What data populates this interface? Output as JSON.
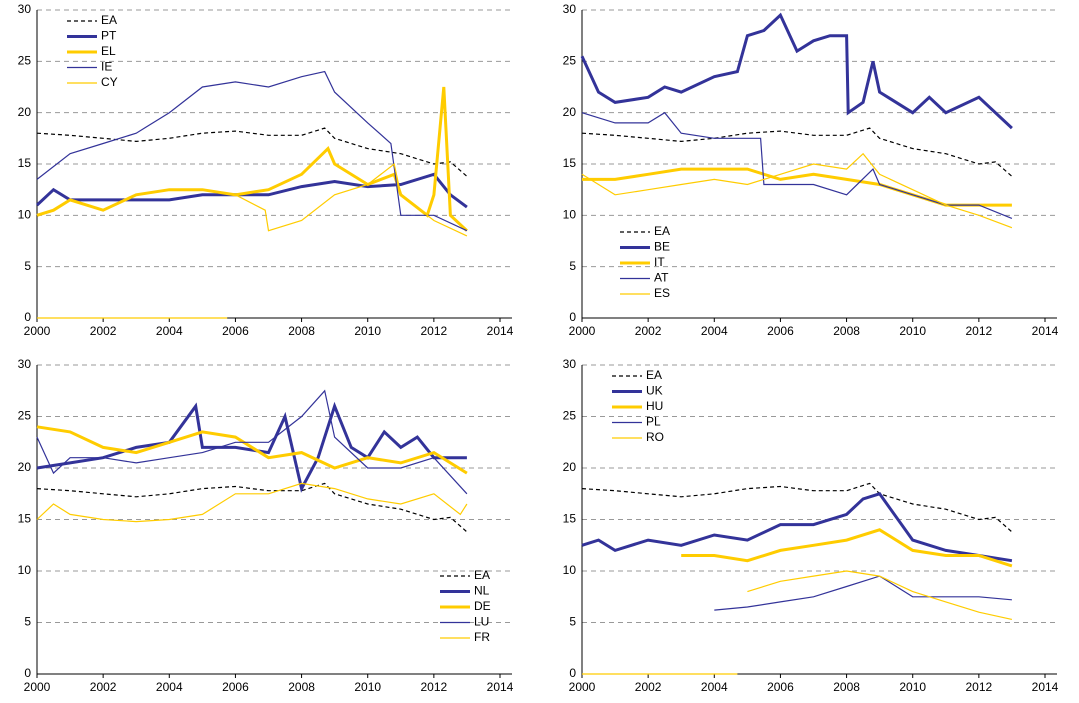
{
  "chart_data": [
    {
      "type": "line",
      "xlim": [
        2000,
        2014
      ],
      "ylim": [
        0,
        30
      ],
      "xticks": [
        2000,
        2002,
        2004,
        2006,
        2008,
        2010,
        2012,
        2014
      ],
      "yticks": [
        0,
        5,
        10,
        15,
        20,
        25,
        30
      ],
      "grid": true,
      "legend": "upper left",
      "series": [
        {
          "name": "EA",
          "color": "#000000",
          "style": "dashed",
          "x": [
            2000,
            2001,
            2002,
            2003,
            2004,
            2005,
            2006,
            2007,
            2008,
            2008.7,
            2009,
            2010,
            2011,
            2012,
            2012.5,
            2013
          ],
          "values": [
            18,
            17.8,
            17.5,
            17.2,
            17.5,
            18,
            18.2,
            17.8,
            17.8,
            18.5,
            17.5,
            16.5,
            16,
            15,
            15.2,
            13.8
          ]
        },
        {
          "name": "PT",
          "color": "#333399",
          "style": "bold",
          "x": [
            2000,
            2000.5,
            2001,
            2002,
            2003,
            2004,
            2005,
            2006,
            2007,
            2008,
            2009,
            2010,
            2011,
            2012,
            2012.5,
            2013
          ],
          "values": [
            11,
            12.5,
            11.5,
            11.5,
            11.5,
            11.5,
            12,
            12,
            12,
            12.8,
            13.3,
            12.8,
            13,
            14,
            12,
            10.8
          ]
        },
        {
          "name": "EL",
          "color": "#ffcc00",
          "style": "bold",
          "x": [
            2000,
            2000.5,
            2001,
            2002,
            2003,
            2004,
            2005,
            2006,
            2007,
            2008,
            2008.8,
            2009,
            2010,
            2010.8,
            2011,
            2011.8,
            2012,
            2012.3,
            2012.5,
            2013
          ],
          "values": [
            10,
            10.5,
            11.5,
            10.5,
            12,
            12.5,
            12.5,
            12,
            12.5,
            14,
            16.5,
            15,
            13,
            14,
            12,
            10,
            12,
            22.5,
            10,
            8.5
          ]
        },
        {
          "name": "IE",
          "color": "#333399",
          "style": "thin",
          "x": [
            2000,
            2001,
            2002,
            2003,
            2004,
            2005,
            2006,
            2007,
            2008,
            2008.7,
            2009,
            2010,
            2010.7,
            2011,
            2012,
            2013
          ],
          "values": [
            13.5,
            16,
            17,
            18,
            20,
            22.5,
            23,
            22.5,
            23.5,
            24,
            22,
            19,
            17,
            10,
            10,
            8.5
          ]
        },
        {
          "name": "CY",
          "color": "#ffcc00",
          "style": "thin",
          "x": [
            2000,
            2005.75,
            null,
            2006,
            2006.9,
            2007,
            2008,
            2009,
            2010,
            2010.8,
            2011,
            2012,
            2013
          ],
          "values": [
            0,
            0,
            null,
            12,
            10.5,
            8.5,
            9.5,
            12,
            13,
            15,
            12,
            9.5,
            8
          ]
        }
      ]
    },
    {
      "type": "line",
      "xlim": [
        2000,
        2014
      ],
      "ylim": [
        0,
        30
      ],
      "xticks": [
        2000,
        2002,
        2004,
        2006,
        2008,
        2010,
        2012,
        2014
      ],
      "yticks": [
        0,
        5,
        10,
        15,
        20,
        25,
        30
      ],
      "grid": true,
      "legend": "lower left",
      "series": [
        {
          "name": "EA",
          "color": "#000000",
          "style": "dashed",
          "x": [
            2000,
            2001,
            2002,
            2003,
            2004,
            2005,
            2006,
            2007,
            2008,
            2008.7,
            2009,
            2010,
            2011,
            2012,
            2012.5,
            2013
          ],
          "values": [
            18,
            17.8,
            17.5,
            17.2,
            17.5,
            18,
            18.2,
            17.8,
            17.8,
            18.5,
            17.5,
            16.5,
            16,
            15,
            15.2,
            13.8
          ]
        },
        {
          "name": "BE",
          "color": "#333399",
          "style": "bold",
          "x": [
            2000,
            2000.5,
            2001,
            2002,
            2002.5,
            2003,
            2004,
            2004.7,
            2005,
            2005.5,
            2006,
            2006.5,
            2007,
            2007.5,
            2008,
            2008.05,
            2008.5,
            2008.8,
            2009,
            2010,
            2010.5,
            2011,
            2012,
            2013
          ],
          "values": [
            25.5,
            22,
            21,
            21.5,
            22.5,
            22,
            23.5,
            24,
            27.5,
            28,
            29.5,
            26,
            27,
            27.5,
            27.5,
            20,
            21,
            25,
            22,
            20,
            21.5,
            20,
            21.5,
            18.5
          ]
        },
        {
          "name": "IT",
          "color": "#ffcc00",
          "style": "bold",
          "x": [
            2000,
            2001,
            2002,
            2003,
            2004,
            2005,
            2006,
            2007,
            2008,
            2009,
            2010,
            2011,
            2012,
            2013
          ],
          "values": [
            13.5,
            13.5,
            14,
            14.5,
            14.5,
            14.5,
            13.5,
            14,
            13.5,
            13,
            12,
            11,
            11,
            11
          ]
        },
        {
          "name": "AT",
          "color": "#333399",
          "style": "thin",
          "x": [
            2000,
            2001,
            2002,
            2002.5,
            2003,
            2004,
            2005,
            2005.4,
            2005.5,
            2006,
            2007,
            2008,
            2008.8,
            2009,
            2010,
            2011,
            2012,
            2013
          ],
          "values": [
            20,
            19,
            19,
            20,
            18,
            17.5,
            17.5,
            17.5,
            13,
            13,
            13,
            12,
            14.5,
            13,
            12,
            11,
            11,
            9.7
          ]
        },
        {
          "name": "ES",
          "color": "#ffcc00",
          "style": "thin",
          "x": [
            2000,
            2001,
            2002,
            2003,
            2004,
            2005,
            2006,
            2007,
            2008,
            2008.5,
            2009,
            2010,
            2011,
            2012,
            2013
          ],
          "values": [
            14,
            12,
            12.5,
            13,
            13.5,
            13,
            14,
            15,
            14.5,
            16,
            14,
            12.5,
            11,
            10,
            8.8
          ]
        }
      ]
    },
    {
      "type": "line",
      "xlim": [
        2000,
        2014
      ],
      "ylim": [
        0,
        30
      ],
      "xticks": [
        2000,
        2002,
        2004,
        2006,
        2008,
        2010,
        2012,
        2014
      ],
      "yticks": [
        0,
        5,
        10,
        15,
        20,
        25,
        30
      ],
      "grid": true,
      "legend": "lower right",
      "series": [
        {
          "name": "EA",
          "color": "#000000",
          "style": "dashed",
          "x": [
            2000,
            2001,
            2002,
            2003,
            2004,
            2005,
            2006,
            2007,
            2008,
            2008.7,
            2009,
            2010,
            2011,
            2012,
            2012.5,
            2013
          ],
          "values": [
            18,
            17.8,
            17.5,
            17.2,
            17.5,
            18,
            18.2,
            17.8,
            17.8,
            18.5,
            17.5,
            16.5,
            16,
            15,
            15.2,
            13.8
          ]
        },
        {
          "name": "NL",
          "color": "#333399",
          "style": "bold",
          "x": [
            2000,
            2001,
            2002,
            2003,
            2004,
            2004.8,
            2005,
            2006,
            2007,
            2007.5,
            2008,
            2008.5,
            2009,
            2009.5,
            2010,
            2010.5,
            2011,
            2011.5,
            2012,
            2013
          ],
          "values": [
            20,
            20.5,
            21,
            22,
            22.5,
            26,
            22,
            22,
            21.5,
            25,
            18,
            21,
            26,
            22,
            21,
            23.5,
            22,
            23,
            21,
            21
          ]
        },
        {
          "name": "DE",
          "color": "#ffcc00",
          "style": "bold",
          "x": [
            2000,
            2001,
            2002,
            2003,
            2004,
            2005,
            2006,
            2007,
            2008,
            2009,
            2010,
            2011,
            2012,
            2013
          ],
          "values": [
            24,
            23.5,
            22,
            21.5,
            22.5,
            23.5,
            23,
            21,
            21.5,
            20,
            21,
            20.5,
            21.5,
            19.5
          ]
        },
        {
          "name": "LU",
          "color": "#333399",
          "style": "thin",
          "x": [
            2000,
            2000.5,
            2001,
            2002,
            2003,
            2004,
            2005,
            2006,
            2007,
            2008,
            2008.7,
            2009,
            2010,
            2011,
            2012,
            2013
          ],
          "values": [
            23,
            19.5,
            21,
            21,
            20.5,
            21,
            21.5,
            22.5,
            22.5,
            25,
            27.5,
            23,
            20,
            20,
            21,
            17.5
          ]
        },
        {
          "name": "FR",
          "color": "#ffcc00",
          "style": "thin",
          "x": [
            2000,
            2000.5,
            2001,
            2002,
            2003,
            2004,
            2005,
            2006,
            2007,
            2008,
            2009,
            2010,
            2011,
            2012,
            2012.8,
            2013
          ],
          "values": [
            15,
            16.5,
            15.5,
            15,
            14.8,
            15,
            15.5,
            17.5,
            17.5,
            18.5,
            18,
            17,
            16.5,
            17.5,
            15.5,
            16.5
          ]
        }
      ]
    },
    {
      "type": "line",
      "xlim": [
        2000,
        2014
      ],
      "ylim": [
        0,
        30
      ],
      "xticks": [
        2000,
        2002,
        2004,
        2006,
        2008,
        2010,
        2012,
        2014
      ],
      "yticks": [
        0,
        5,
        10,
        15,
        20,
        25,
        30
      ],
      "grid": true,
      "legend": "upper left",
      "series": [
        {
          "name": "EA",
          "color": "#000000",
          "style": "dashed",
          "x": [
            2000,
            2001,
            2002,
            2003,
            2004,
            2005,
            2006,
            2007,
            2008,
            2008.7,
            2009,
            2010,
            2011,
            2012,
            2012.5,
            2013
          ],
          "values": [
            18,
            17.8,
            17.5,
            17.2,
            17.5,
            18,
            18.2,
            17.8,
            17.8,
            18.5,
            17.5,
            16.5,
            16,
            15,
            15.2,
            13.8
          ]
        },
        {
          "name": "UK",
          "color": "#333399",
          "style": "bold",
          "x": [
            2000,
            2000.5,
            2001,
            2002,
            2003,
            2004,
            2005,
            2006,
            2007,
            2008,
            2008.5,
            2009,
            2010,
            2011,
            2012,
            2013
          ],
          "values": [
            12.5,
            13,
            12,
            13,
            12.5,
            13.5,
            13,
            14.5,
            14.5,
            15.5,
            17,
            17.5,
            13,
            12,
            11.5,
            11
          ]
        },
        {
          "name": "HU",
          "color": "#ffcc00",
          "style": "bold",
          "x": [
            2003,
            2004,
            2005,
            2006,
            2007,
            2008,
            2009,
            2010,
            2011,
            2012,
            2013
          ],
          "values": [
            11.5,
            11.5,
            11,
            12,
            12.5,
            13,
            14,
            12,
            11.5,
            11.5,
            10.5
          ]
        },
        {
          "name": "PL",
          "color": "#333399",
          "style": "thin",
          "x": [
            2004,
            2005,
            2006,
            2007,
            2008,
            2009,
            2010,
            2011,
            2012,
            2013
          ],
          "values": [
            6.2,
            6.5,
            7,
            7.5,
            8.5,
            9.5,
            7.5,
            7.5,
            7.5,
            7.2
          ]
        },
        {
          "name": "RO",
          "color": "#ffcc00",
          "style": "thin",
          "x": [
            2000,
            2004.7,
            null,
            2005,
            2006,
            2007,
            2008,
            2009,
            2010,
            2011,
            2012,
            2013
          ],
          "values": [
            0,
            0,
            null,
            8,
            9,
            9.5,
            10,
            9.5,
            8,
            7,
            6,
            5.3
          ]
        }
      ]
    }
  ]
}
